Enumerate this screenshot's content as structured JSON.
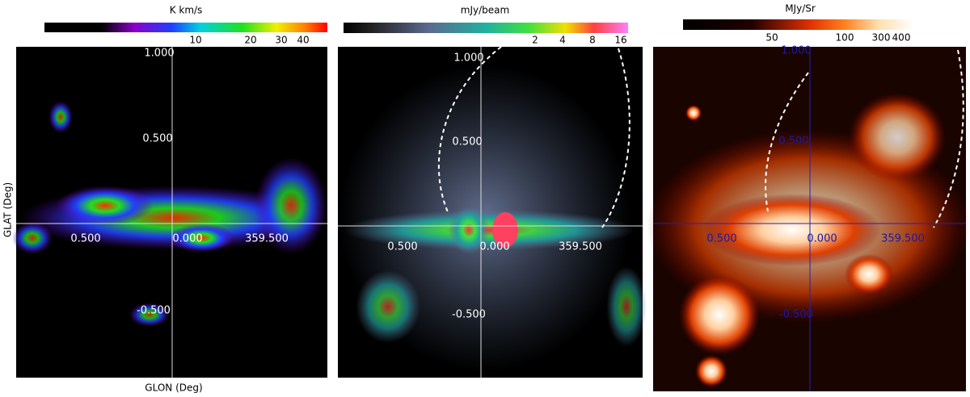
{
  "panels": [
    {
      "colorbar": {
        "label": "K km/s",
        "ticks": [
          "10",
          "20",
          "30",
          "40"
        ]
      },
      "axis_labels": [
        "1.000",
        "0.500",
        "0.500",
        "0.000",
        "359.500",
        "-0.500"
      ],
      "ylabel": "GLAT (Deg)",
      "xlabel": "GLON (Deg)"
    },
    {
      "colorbar": {
        "label": "mJy/beam",
        "ticks": [
          "2",
          "4",
          "8",
          "16"
        ]
      },
      "axis_labels": [
        "1.000",
        "0.500",
        "0.500",
        "0.000",
        "359.500",
        "-0.500"
      ]
    },
    {
      "colorbar": {
        "label": "MJy/Sr",
        "ticks": [
          "50",
          "100",
          "300",
          "400"
        ]
      },
      "axis_labels": [
        "1.000",
        "0.500",
        "0.500",
        "0.000",
        "359.500",
        "-0.500"
      ]
    }
  ]
}
